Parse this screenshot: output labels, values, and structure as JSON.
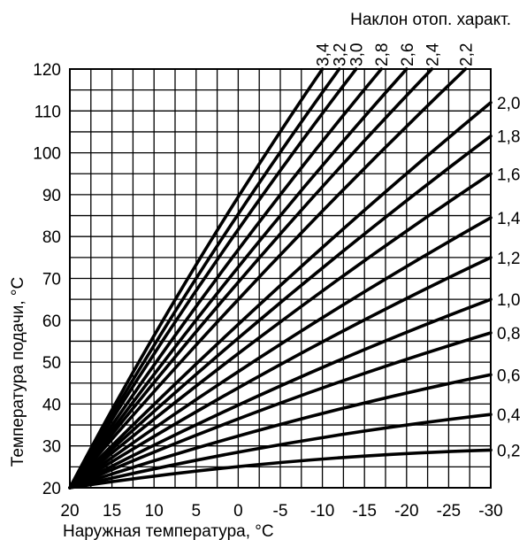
{
  "chart_data": {
    "type": "line",
    "title": "Наклон отоп. характ.",
    "xlabel": "Наружная температура, °C",
    "ylabel": "Температура подачи, °C",
    "x_ticks": [
      "20",
      "15",
      "10",
      "5",
      "0",
      "-5",
      "-10",
      "-15",
      "-20",
      "-25",
      "-30"
    ],
    "y_ticks": [
      "20",
      "30",
      "40",
      "50",
      "60",
      "70",
      "80",
      "90",
      "100",
      "110",
      "120"
    ],
    "xlim": [
      20,
      -30
    ],
    "ylim": [
      20,
      120
    ],
    "x_reversed": true,
    "grid": true,
    "series": [
      {
        "name": "0,2",
        "x": [
          20,
          -30
        ],
        "y": [
          20,
          29
        ]
      },
      {
        "name": "0,4",
        "x": [
          20,
          -30
        ],
        "y": [
          20,
          37.5
        ]
      },
      {
        "name": "0,6",
        "x": [
          20,
          -30
        ],
        "y": [
          20,
          47
        ]
      },
      {
        "name": "0,8",
        "x": [
          20,
          -30
        ],
        "y": [
          20,
          57
        ]
      },
      {
        "name": "1,0",
        "x": [
          20,
          -30
        ],
        "y": [
          20,
          65
        ]
      },
      {
        "name": "1,2",
        "x": [
          20,
          -30
        ],
        "y": [
          20,
          75
        ]
      },
      {
        "name": "1,4",
        "x": [
          20,
          -30
        ],
        "y": [
          20,
          84.5
        ]
      },
      {
        "name": "1,6",
        "x": [
          20,
          -30
        ],
        "y": [
          20,
          95
        ]
      },
      {
        "name": "1,8",
        "x": [
          20,
          -30
        ],
        "y": [
          20,
          104
        ]
      },
      {
        "name": "2,0",
        "x": [
          20,
          -30
        ],
        "y": [
          20,
          112
        ]
      },
      {
        "name": "2,2",
        "x": [
          20,
          -27
        ],
        "y": [
          20,
          120
        ]
      },
      {
        "name": "2,4",
        "x": [
          20,
          -23
        ],
        "y": [
          20,
          120
        ]
      },
      {
        "name": "2,6",
        "x": [
          20,
          -20
        ],
        "y": [
          20,
          120
        ]
      },
      {
        "name": "2,8",
        "x": [
          20,
          -17
        ],
        "y": [
          20,
          120
        ]
      },
      {
        "name": "3,0",
        "x": [
          20,
          -14
        ],
        "y": [
          20,
          120
        ]
      },
      {
        "name": "3,2",
        "x": [
          20,
          -12
        ],
        "y": [
          20,
          120
        ]
      },
      {
        "name": "3,4",
        "x": [
          20,
          -10
        ],
        "y": [
          20,
          120
        ]
      }
    ]
  }
}
